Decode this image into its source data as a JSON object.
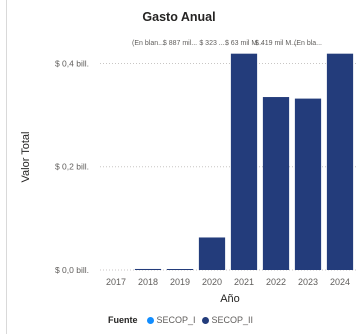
{
  "chart_data": {
    "type": "bar",
    "title": "Gasto Anual",
    "xlabel": "Año",
    "ylabel": "Valor Total",
    "categories": [
      "2017",
      "2018",
      "2019",
      "2020",
      "2021",
      "2022",
      "2023",
      "2024"
    ],
    "series": [
      {
        "name": "SECOP_I",
        "color": "#118dff",
        "values": [
          0,
          0,
          0,
          0,
          0,
          0,
          0,
          0
        ]
      },
      {
        "name": "SECOP_II",
        "color": "#233c7b",
        "values": [
          0,
          0.002,
          0.001,
          0.063,
          0.419,
          0.335,
          0.332,
          0.419
        ]
      }
    ],
    "data_labels": [
      "",
      "(En blan...",
      "$ 887 mil...",
      "$ 323 ...",
      "$ 63 mil M...",
      "$ 419 mil M...",
      "(En bla...",
      ""
    ],
    "y_ticks": [
      {
        "value": 0,
        "label": "$ 0,0 bill."
      },
      {
        "value": 0.2,
        "label": "$ 0,2 bill."
      },
      {
        "value": 0.4,
        "label": "$ 0,4 bill."
      }
    ],
    "ylim": [
      0,
      0.43
    ],
    "grid": true,
    "legend": {
      "title": "Fuente",
      "position": "bottom"
    }
  }
}
